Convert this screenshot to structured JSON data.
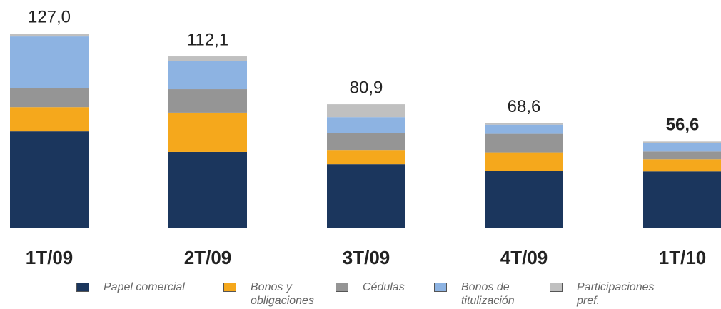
{
  "chart_data": {
    "type": "stacked_bar",
    "categories": [
      "1T/09",
      "2T/09",
      "3T/09",
      "4T/09",
      "1T/10"
    ],
    "series": [
      {
        "name": "Papel comercial",
        "color": "#1b365d",
        "values": [
          63.2,
          49.8,
          41.8,
          37.4,
          37.1
        ]
      },
      {
        "name": "Bonos y obligaciones",
        "color": "#f5a81c",
        "values": [
          15.8,
          25.6,
          9.3,
          12.1,
          7.9
        ]
      },
      {
        "name": "Cédulas",
        "color": "#959595",
        "values": [
          12.6,
          15.3,
          11.2,
          12.1,
          5.1
        ]
      },
      {
        "name": "Bonos de titulización",
        "color": "#8db3e2",
        "values": [
          33.5,
          18.6,
          10.2,
          6.0,
          5.6
        ]
      },
      {
        "name": "Participaciones pref.",
        "color": "#c0c0c0",
        "values": [
          1.9,
          2.8,
          8.4,
          1.0,
          0.9
        ]
      }
    ],
    "totals": [
      127.0,
      112.1,
      80.9,
      68.6,
      56.6
    ],
    "total_labels": [
      "127,0",
      "112,1",
      "80,9",
      "68,6",
      "56,6"
    ]
  }
}
